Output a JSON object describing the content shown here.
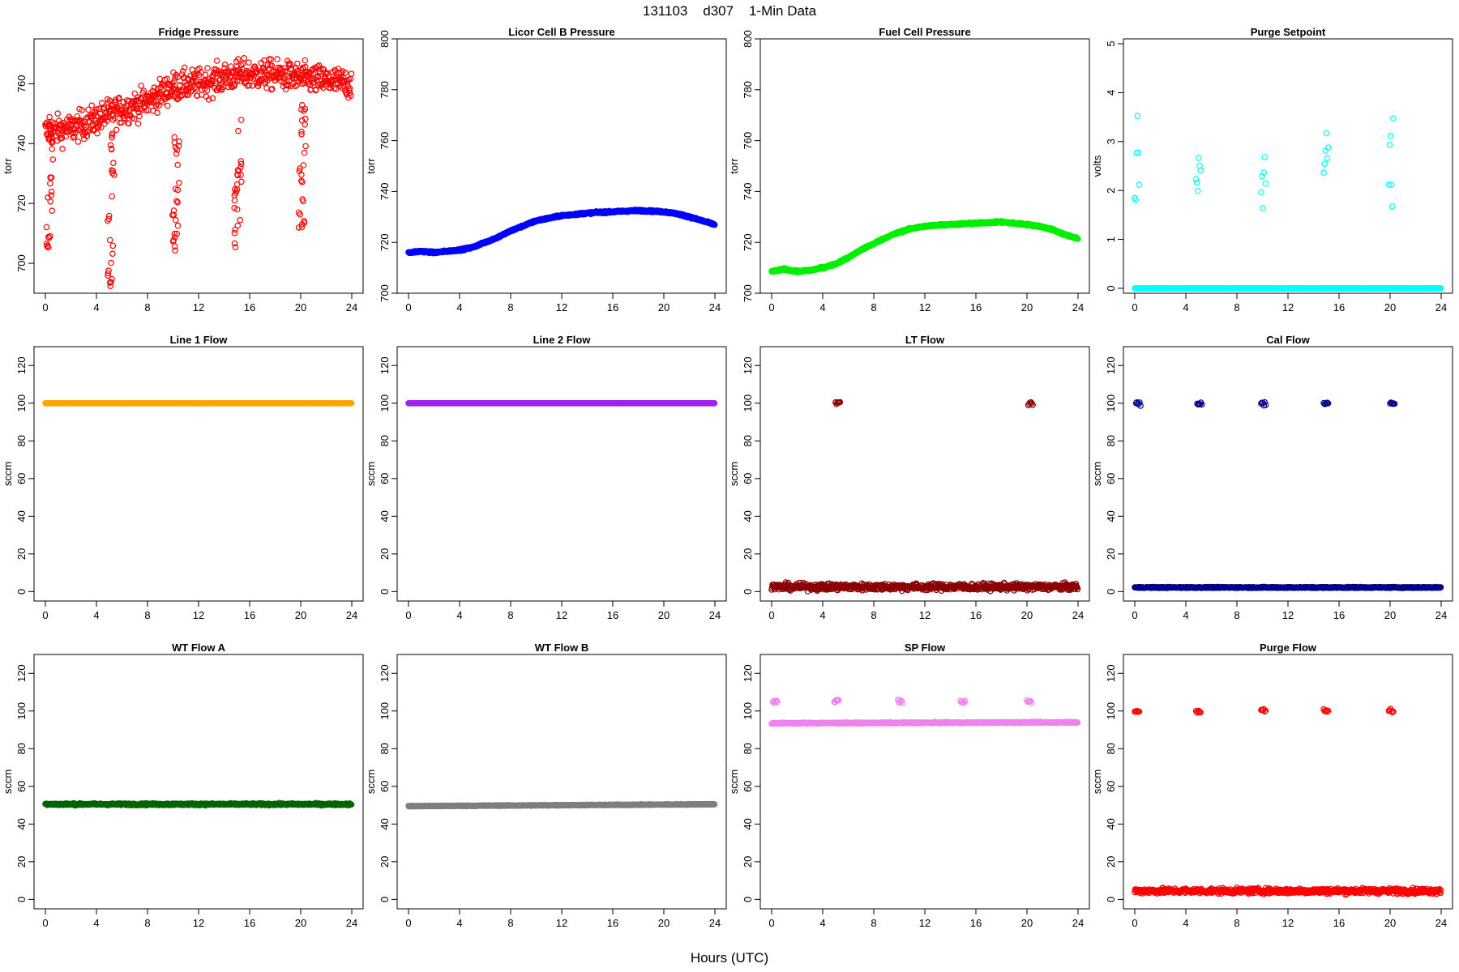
{
  "figure": {
    "title": "131103    d307    1-Min Data",
    "xlabel": "Hours (UTC)"
  },
  "chart_data": [
    {
      "type": "scatter",
      "title": "Fridge Pressure",
      "ylabel": "torr",
      "color": "#ff0000",
      "xlim": [
        0,
        24
      ],
      "ylim": [
        690,
        775
      ],
      "yticks": [
        700,
        720,
        740,
        760
      ],
      "xticks": [
        0,
        4,
        8,
        12,
        16,
        20,
        24
      ],
      "marker": "open-circle",
      "pattern": "fridge",
      "series": [
        {
          "values": []
        }
      ]
    },
    {
      "type": "scatter",
      "title": "Licor Cell B Pressure",
      "ylabel": "torr",
      "color": "#0000ff",
      "xlim": [
        0,
        24
      ],
      "ylim": [
        700,
        800
      ],
      "yticks": [
        700,
        720,
        740,
        760,
        780,
        800
      ],
      "xticks": [
        0,
        4,
        8,
        12,
        16,
        20,
        24
      ],
      "marker": "open-circle",
      "series": [
        {
          "values": [
            [
              0,
              716
            ],
            [
              1,
              716.5
            ],
            [
              2,
              716
            ],
            [
              3,
              716.5
            ],
            [
              4,
              717
            ],
            [
              5,
              718
            ],
            [
              6,
              720
            ],
            [
              7,
              722
            ],
            [
              8,
              724.5
            ],
            [
              9,
              726.5
            ],
            [
              10,
              728.5
            ],
            [
              11,
              729.5
            ],
            [
              12,
              730.5
            ],
            [
              13,
              731
            ],
            [
              14,
              731.5
            ],
            [
              15,
              731.8
            ],
            [
              16,
              732
            ],
            [
              17,
              732.3
            ],
            [
              18,
              732.5
            ],
            [
              19,
              732.3
            ],
            [
              20,
              732
            ],
            [
              21,
              731.3
            ],
            [
              22,
              730
            ],
            [
              23,
              728.5
            ],
            [
              24,
              727
            ]
          ]
        }
      ]
    },
    {
      "type": "scatter",
      "title": "Fuel Cell Pressure",
      "ylabel": "torr",
      "color": "#00ee00",
      "xlim": [
        0,
        24
      ],
      "ylim": [
        700,
        800
      ],
      "yticks": [
        700,
        720,
        740,
        760,
        780,
        800
      ],
      "xticks": [
        0,
        4,
        8,
        12,
        16,
        20,
        24
      ],
      "marker": "open-circle",
      "series": [
        {
          "values": [
            [
              0,
              708.5
            ],
            [
              1,
              709.5
            ],
            [
              2,
              708.5
            ],
            [
              3,
              709
            ],
            [
              4,
              710
            ],
            [
              5,
              711.5
            ],
            [
              6,
              714
            ],
            [
              7,
              717
            ],
            [
              8,
              719.5
            ],
            [
              9,
              722
            ],
            [
              10,
              724
            ],
            [
              11,
              725.5
            ],
            [
              12,
              726.3
            ],
            [
              13,
              726.8
            ],
            [
              14,
              727
            ],
            [
              15,
              727.3
            ],
            [
              16,
              727.5
            ],
            [
              17,
              727.8
            ],
            [
              18,
              728
            ],
            [
              19,
              727.5
            ],
            [
              20,
              727
            ],
            [
              21,
              726.3
            ],
            [
              22,
              725
            ],
            [
              23,
              723
            ],
            [
              24,
              721.5
            ]
          ]
        }
      ]
    },
    {
      "type": "scatter",
      "title": "Purge Setpoint",
      "ylabel": "volts",
      "color": "#00ffff",
      "xlim": [
        0,
        24
      ],
      "ylim": [
        -0.1,
        5.1
      ],
      "yticks": [
        0,
        1,
        2,
        3,
        4,
        5
      ],
      "xticks": [
        0,
        4,
        8,
        12,
        16,
        20,
        24
      ],
      "marker": "open-circle",
      "baseline": 0.0,
      "spike_x": [
        0.0,
        4.8,
        9.9,
        14.8,
        19.9
      ],
      "spike_y": [
        2.55,
        2.48,
        2.52,
        2.47,
        2.5
      ],
      "series": [
        {
          "values": []
        }
      ]
    },
    {
      "type": "scatter",
      "title": "Line 1 Flow",
      "ylabel": "sccm",
      "color": "#ffa500",
      "xlim": [
        0,
        24
      ],
      "ylim": [
        -5,
        130
      ],
      "yticks": [
        0,
        20,
        40,
        60,
        80,
        100,
        120
      ],
      "xticks": [
        0,
        4,
        8,
        12,
        16,
        20,
        24
      ],
      "marker": "open-circle",
      "baseline": 100,
      "series": [
        {
          "values": []
        }
      ]
    },
    {
      "type": "scatter",
      "title": "Line 2 Flow",
      "ylabel": "sccm",
      "color": "#a020f0",
      "xlim": [
        0,
        24
      ],
      "ylim": [
        -5,
        130
      ],
      "yticks": [
        0,
        20,
        40,
        60,
        80,
        100,
        120
      ],
      "xticks": [
        0,
        4,
        8,
        12,
        16,
        20,
        24
      ],
      "marker": "open-circle",
      "baseline": 100,
      "series": [
        {
          "values": []
        }
      ]
    },
    {
      "type": "scatter",
      "title": "LT Flow",
      "ylabel": "sccm",
      "color": "#8b0000",
      "xlim": [
        0,
        24
      ],
      "ylim": [
        -5,
        130
      ],
      "yticks": [
        0,
        20,
        40,
        60,
        80,
        100,
        120
      ],
      "xticks": [
        0,
        4,
        8,
        12,
        16,
        20,
        24
      ],
      "marker": "open-circle",
      "baseline": 2.5,
      "noise": 2.5,
      "spike_x": [
        5.0,
        20.1
      ],
      "spike_y": [
        100,
        100
      ],
      "series": [
        {
          "values": []
        }
      ]
    },
    {
      "type": "scatter",
      "title": "Cal Flow",
      "ylabel": "sccm",
      "color": "#00008b",
      "xlim": [
        0,
        24
      ],
      "ylim": [
        -5,
        130
      ],
      "yticks": [
        0,
        20,
        40,
        60,
        80,
        100,
        120
      ],
      "xticks": [
        0,
        4,
        8,
        12,
        16,
        20,
        24
      ],
      "marker": "open-circle",
      "baseline": 2.2,
      "noise": 0.4,
      "spike_x": [
        0.1,
        4.9,
        9.9,
        14.8,
        20.0
      ],
      "spike_y": [
        100,
        100,
        100,
        100,
        100
      ],
      "series": [
        {
          "values": []
        }
      ]
    },
    {
      "type": "scatter",
      "title": "WT Flow A",
      "ylabel": "sccm",
      "color": "#006400",
      "xlim": [
        0,
        24
      ],
      "ylim": [
        -5,
        130
      ],
      "yticks": [
        0,
        20,
        40,
        60,
        80,
        100,
        120
      ],
      "xticks": [
        0,
        4,
        8,
        12,
        16,
        20,
        24
      ],
      "marker": "open-circle",
      "baseline": 50.5,
      "noise": 0.7,
      "series": [
        {
          "values": []
        }
      ]
    },
    {
      "type": "scatter",
      "title": "WT Flow B",
      "ylabel": "sccm",
      "color": "#7f7f7f",
      "xlim": [
        0,
        24
      ],
      "ylim": [
        -5,
        130
      ],
      "yticks": [
        0,
        20,
        40,
        60,
        80,
        100,
        120
      ],
      "xticks": [
        0,
        4,
        8,
        12,
        16,
        20,
        24
      ],
      "marker": "open-circle",
      "baseline": 49.5,
      "baseline_end": 50.5,
      "noise": 0.3,
      "series": [
        {
          "values": []
        }
      ]
    },
    {
      "type": "scatter",
      "title": "SP Flow",
      "ylabel": "sccm",
      "color": "#ee82ee",
      "xlim": [
        0,
        24
      ],
      "ylim": [
        -5,
        130
      ],
      "yticks": [
        0,
        20,
        40,
        60,
        80,
        100,
        120
      ],
      "xticks": [
        0,
        4,
        8,
        12,
        16,
        20,
        24
      ],
      "marker": "open-circle",
      "baseline": 93.5,
      "baseline_end": 94,
      "noise": 0.4,
      "spike_x": [
        0.1,
        4.9,
        9.9,
        14.8,
        20.0
      ],
      "spike_y": [
        105,
        105,
        105,
        105,
        105
      ],
      "series": [
        {
          "values": []
        }
      ]
    },
    {
      "type": "scatter",
      "title": "Purge Flow",
      "ylabel": "sccm",
      "color": "#ff0000",
      "xlim": [
        0,
        24
      ],
      "ylim": [
        -5,
        130
      ],
      "yticks": [
        0,
        20,
        40,
        60,
        80,
        100,
        120
      ],
      "xticks": [
        0,
        4,
        8,
        12,
        16,
        20,
        24
      ],
      "marker": "open-circle",
      "baseline": 4.5,
      "noise": 2.0,
      "spike_x": [
        0.0,
        4.8,
        9.9,
        14.8,
        19.9
      ],
      "spike_y": [
        100,
        100,
        100,
        100,
        100
      ],
      "series": [
        {
          "values": []
        }
      ]
    }
  ]
}
